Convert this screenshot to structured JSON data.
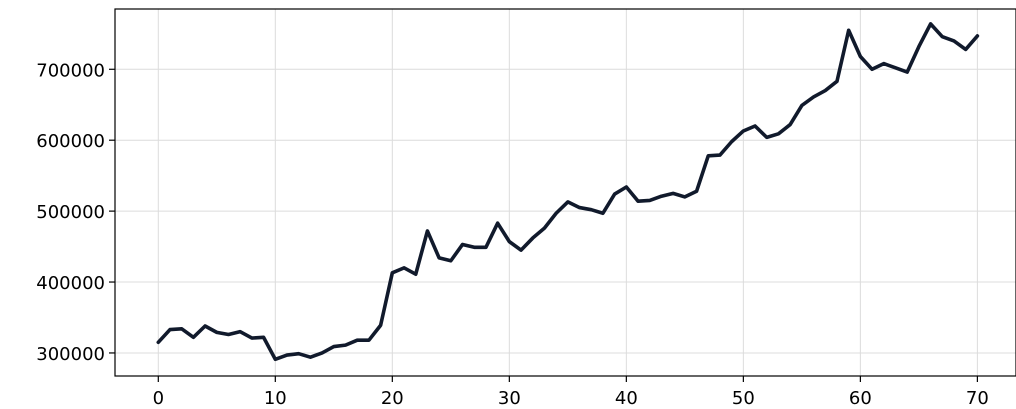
{
  "chart_data": {
    "type": "line",
    "title": "",
    "xlabel": "",
    "ylabel": "",
    "xlim": [
      -3.7,
      73.3
    ],
    "ylim": [
      267500,
      785000
    ],
    "xticks": [
      0,
      10,
      20,
      30,
      40,
      50,
      60,
      70
    ],
    "yticks": [
      300000,
      400000,
      500000,
      600000,
      700000
    ],
    "grid": true,
    "line_color": "#111a2c",
    "series": [
      {
        "name": "",
        "x": [
          0,
          1,
          2,
          3,
          4,
          5,
          6,
          7,
          8,
          9,
          10,
          11,
          12,
          13,
          14,
          15,
          16,
          17,
          18,
          19,
          20,
          21,
          22,
          23,
          24,
          25,
          26,
          27,
          28,
          29,
          30,
          31,
          32,
          33,
          34,
          35,
          36,
          37,
          38,
          39,
          40,
          41,
          42,
          43,
          44,
          45,
          46,
          47,
          48,
          49,
          50,
          51,
          52,
          53,
          54,
          55,
          56,
          57,
          58,
          59,
          60,
          61,
          62,
          63,
          64,
          65,
          66,
          67,
          68,
          69,
          70
        ],
        "y": [
          315000,
          333000,
          334000,
          322000,
          338000,
          329000,
          326000,
          330000,
          321000,
          322000,
          291000,
          297000,
          299000,
          294000,
          300000,
          309000,
          311000,
          318000,
          318000,
          339000,
          413000,
          420000,
          411000,
          472000,
          434000,
          430000,
          453000,
          449000,
          449000,
          483000,
          457000,
          445000,
          462000,
          476000,
          497000,
          513000,
          505000,
          502000,
          497000,
          524000,
          534000,
          514000,
          515000,
          521000,
          525000,
          520000,
          528000,
          578000,
          579000,
          598000,
          613000,
          620000,
          604000,
          609000,
          622000,
          649000,
          661000,
          670000,
          683000,
          755000,
          718000,
          700000,
          708000,
          702000,
          696000,
          732000,
          764000,
          746000,
          740000,
          728000,
          747000
        ]
      }
    ]
  }
}
